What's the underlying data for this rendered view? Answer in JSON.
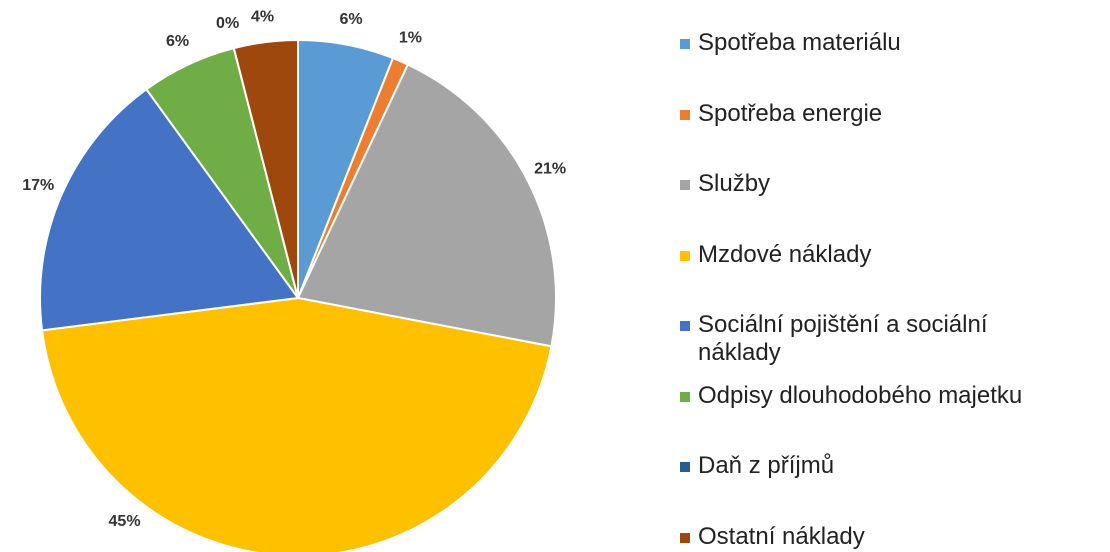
{
  "chart_data": {
    "type": "pie",
    "categories": [
      "Spotřeba materiálu",
      "Spotřeba energie",
      "Služby",
      "Mzdové náklady",
      "Sociální pojištění a sociální náklady",
      "Odpisy dlouhodobého majetku",
      "Daň z příjmů",
      "Ostatní náklady"
    ],
    "values": [
      6,
      1,
      21,
      45,
      17,
      6,
      0,
      4
    ],
    "value_labels": [
      "6%",
      "1%",
      "21%",
      "45%",
      "17%",
      "6%",
      "0%",
      "4%"
    ],
    "colors": [
      "#5b9bd5",
      "#ed7d31",
      "#a5a5a5",
      "#ffc000",
      "#4472c4",
      "#70ad47",
      "#255e91",
      "#9e480e"
    ],
    "legend": "right"
  }
}
